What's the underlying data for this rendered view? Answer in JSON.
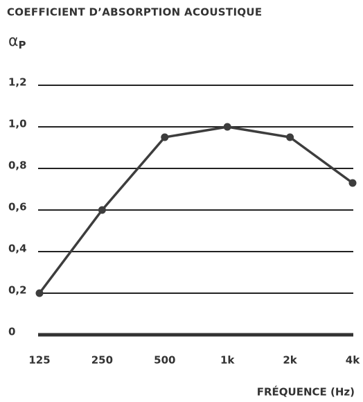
{
  "chart_data": {
    "type": "line",
    "title": "COEFFICIENT D’ABSORPTION ACOUSTIQUE",
    "y_label": "α",
    "y_label_subscript": "P",
    "x_label": "FRÉQUENCE (Hz)",
    "categories": [
      "125",
      "250",
      "500",
      "1k",
      "2k",
      "4k"
    ],
    "values": [
      0.2,
      0.6,
      0.95,
      1.0,
      0.95,
      0.73
    ],
    "color": "#3d3d3d",
    "ylim": [
      0,
      1.2
    ],
    "yticks": [
      0,
      {
        "value": 0.2,
        "label": "0,2"
      },
      {
        "value": 0.4,
        "label": "0,4"
      },
      {
        "value": 0.6,
        "label": "0,6"
      },
      {
        "value": 0.8,
        "label": "0,8"
      },
      {
        "value": 1.0,
        "label": "1,0"
      },
      {
        "value": 1.2,
        "label": "1,2"
      }
    ],
    "grid": true
  }
}
